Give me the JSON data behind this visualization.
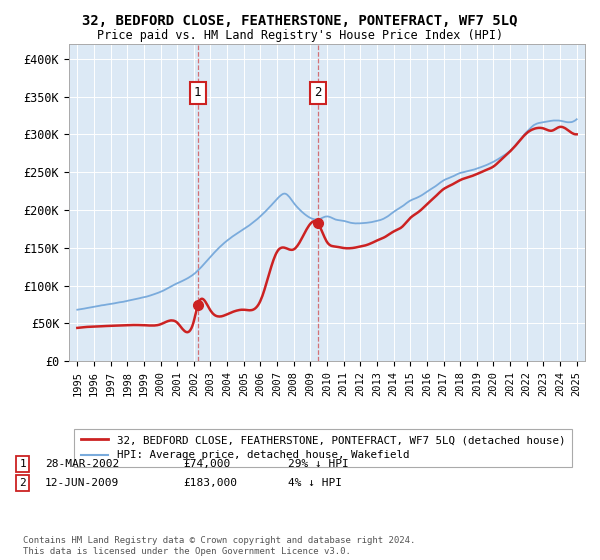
{
  "title": "32, BEDFORD CLOSE, FEATHERSTONE, PONTEFRACT, WF7 5LQ",
  "subtitle": "Price paid vs. HM Land Registry's House Price Index (HPI)",
  "ylabel_ticks": [
    "£0",
    "£50K",
    "£100K",
    "£150K",
    "£200K",
    "£250K",
    "£300K",
    "£350K",
    "£400K"
  ],
  "ytick_values": [
    0,
    50000,
    100000,
    150000,
    200000,
    250000,
    300000,
    350000,
    400000
  ],
  "ylim": [
    0,
    420000
  ],
  "hpi_color": "#7aabdc",
  "price_color": "#cc2222",
  "marker1_date": 2002.23,
  "marker1_price": 74000,
  "marker2_date": 2009.44,
  "marker2_price": 183000,
  "legend_line1": "32, BEDFORD CLOSE, FEATHERSTONE, PONTEFRACT, WF7 5LQ (detached house)",
  "legend_line2": "HPI: Average price, detached house, Wakefield",
  "footnote": "Contains HM Land Registry data © Crown copyright and database right 2024.\nThis data is licensed under the Open Government Licence v3.0.",
  "xlim_start": 1994.5,
  "xlim_end": 2025.5,
  "plot_bg": "#dce9f5"
}
